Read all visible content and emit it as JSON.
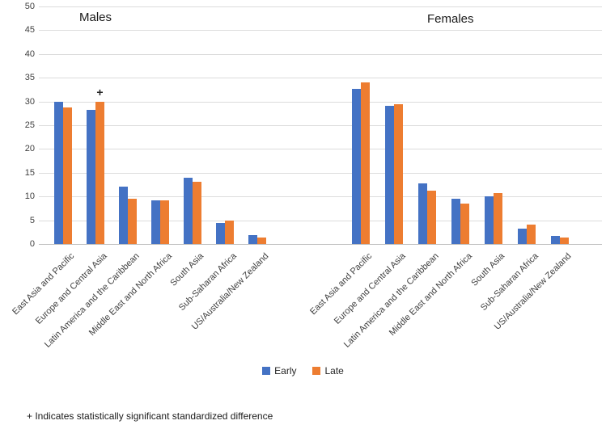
{
  "chart_data": {
    "type": "bar",
    "title": "",
    "ylabel": "",
    "xlabel": "",
    "ylim": [
      0,
      50
    ],
    "ytick_step": 5,
    "yticks": [
      0,
      5,
      10,
      15,
      20,
      25,
      30,
      35,
      40,
      45,
      50
    ],
    "grid": true,
    "legend_position": "bottom",
    "legend": {
      "items": [
        {
          "label": "Early",
          "color": "#4472C4"
        },
        {
          "label": "Late",
          "color": "#ED7D31"
        }
      ]
    },
    "colors": {
      "Early": "#4472C4",
      "Late": "#ED7D31"
    },
    "categories": [
      "East Asia and Pacific",
      "Europe and Central Asia",
      "Latin America and the Caribbean",
      "Middle East and North Africa",
      "South Asia",
      "Sub-Saharan Africa",
      "US/Australia/New Zealand"
    ],
    "panels": [
      {
        "label": "Males",
        "series": [
          {
            "name": "Early",
            "values": [
              30.0,
              28.3,
              12.0,
              9.1,
              14.0,
              4.5,
              1.8
            ]
          },
          {
            "name": "Late",
            "values": [
              28.7,
              29.9,
              9.5,
              9.2,
              13.1,
              5.0,
              1.4
            ]
          }
        ],
        "annotations": [
          {
            "text": "+",
            "category_index": 1,
            "series": "Late"
          }
        ]
      },
      {
        "label": "Females",
        "series": [
          {
            "name": "Early",
            "values": [
              32.6,
              29.1,
              12.7,
              9.5,
              10.1,
              3.2,
              1.7
            ]
          },
          {
            "name": "Late",
            "values": [
              34.0,
              29.5,
              11.2,
              8.5,
              10.7,
              4.1,
              1.3
            ]
          }
        ],
        "annotations": []
      }
    ]
  },
  "footnote": {
    "text": "+ Indicates statistically significant standardized difference"
  }
}
